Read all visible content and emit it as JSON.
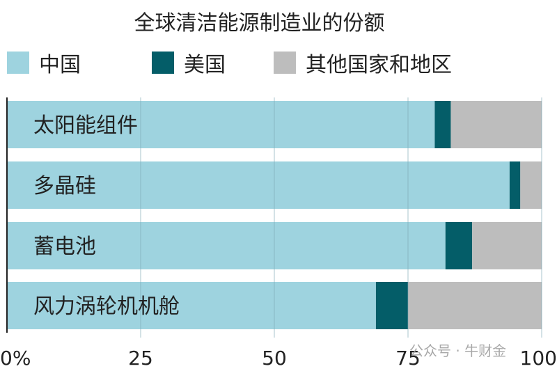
{
  "chart_data": {
    "type": "bar",
    "orientation": "horizontal",
    "stacked": true,
    "title": "全球清洁能源制造业的份额",
    "categories": [
      "太阳能组件",
      "多晶硅",
      "蓄电池",
      "风力涡轮机机舱"
    ],
    "series": [
      {
        "name": "中国",
        "color": "#9ed3df",
        "values": [
          80,
          94,
          82,
          69
        ]
      },
      {
        "name": "美国",
        "color": "#045d68",
        "values": [
          3,
          2,
          5,
          6
        ]
      },
      {
        "name": "其他国家和地区",
        "color": "#bdbdbd",
        "values": [
          17,
          4,
          13,
          25
        ]
      }
    ],
    "xlim": [
      0,
      100
    ],
    "xticks": [
      "0%",
      "25",
      "50",
      "75",
      "100"
    ],
    "xtick_values": [
      0,
      25,
      50,
      75,
      100
    ],
    "grid": true,
    "legend_position": "top"
  },
  "watermark": "公众号 · 牛财金"
}
